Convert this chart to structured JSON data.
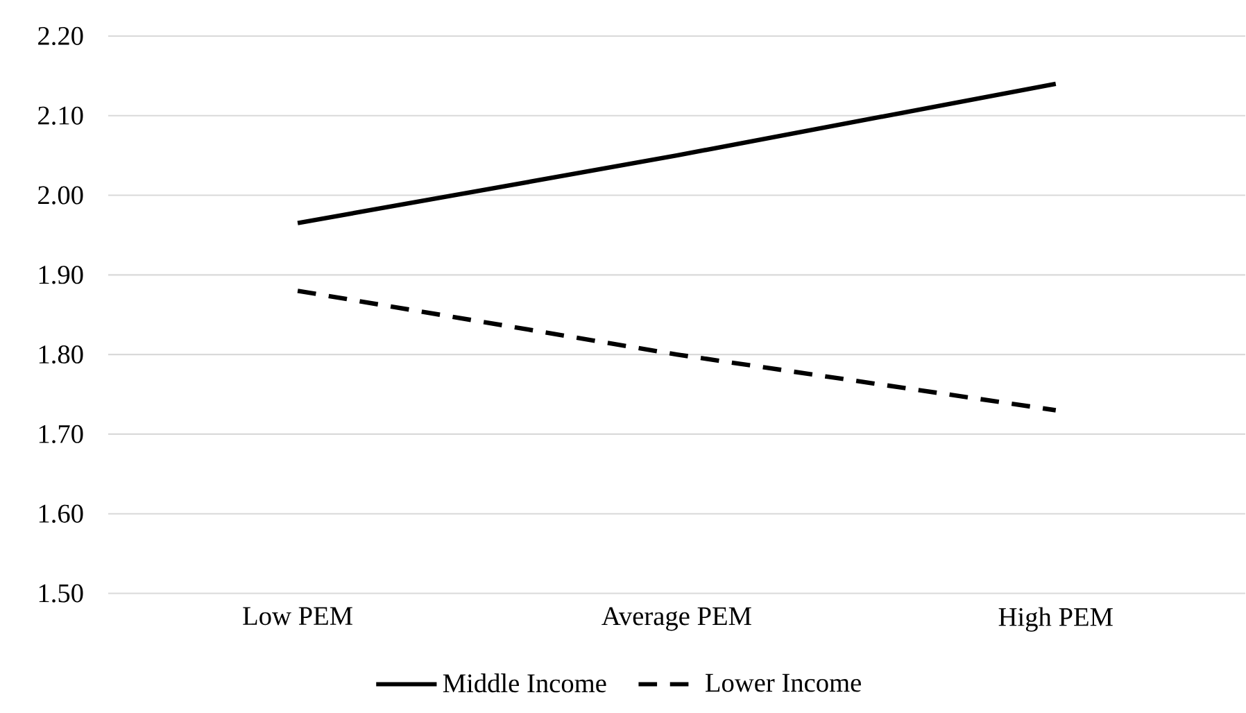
{
  "chart_data": {
    "type": "line",
    "categories": [
      "Low PEM",
      "Average PEM",
      "High PEM"
    ],
    "series": [
      {
        "name": "Middle Income",
        "color": "#000000",
        "line_style": "solid",
        "values": [
          1.965,
          2.05,
          2.14
        ]
      },
      {
        "name": "Lower Income",
        "color": "#000000",
        "line_style": "dashed",
        "values": [
          1.88,
          1.8,
          1.73
        ]
      }
    ],
    "ylim": [
      1.5,
      2.2
    ],
    "yticks": [
      {
        "value": 1.5,
        "label": "1.50"
      },
      {
        "value": 1.6,
        "label": "1.60"
      },
      {
        "value": 1.7,
        "label": "1.70"
      },
      {
        "value": 1.8,
        "label": "1.80"
      },
      {
        "value": 1.9,
        "label": "1.90"
      },
      {
        "value": 2.0,
        "label": "2.00"
      },
      {
        "value": 2.1,
        "label": "2.10"
      },
      {
        "value": 2.2,
        "label": "2.20"
      }
    ],
    "grid": "y",
    "legend": "bottom",
    "marker": "none"
  }
}
